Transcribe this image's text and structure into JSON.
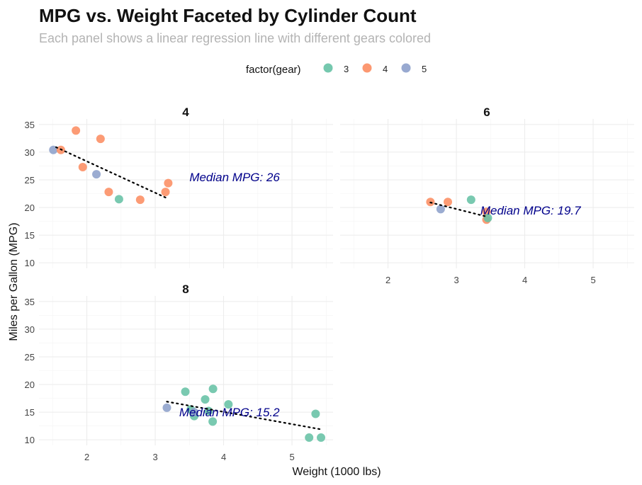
{
  "chart_data": {
    "type": "scatter",
    "title": "MPG vs. Weight Faceted by Cylinder Count",
    "subtitle": "Each panel shows a linear regression line with different gears colored",
    "xlabel": "Weight (1000 lbs)",
    "ylabel": "Miles per Gallon (MPG)",
    "xlim": [
      1.3,
      5.6
    ],
    "ylim": [
      9,
      36
    ],
    "x_ticks": [
      "2",
      "3",
      "4",
      "5"
    ],
    "y_ticks": [
      "10",
      "15",
      "20",
      "25",
      "30",
      "35"
    ],
    "grid": true,
    "legend": {
      "title": "factor(gear)",
      "position": "top",
      "entries": [
        {
          "label": "3",
          "color": "#66c2a5"
        },
        {
          "label": "4",
          "color": "#fc8d62"
        },
        {
          "label": "5",
          "color": "#8da0cb"
        }
      ]
    },
    "panels": [
      {
        "label": "4",
        "annotation": "Median MPG: 26",
        "annotation_pos": [
          3.5,
          25.5
        ],
        "regression": {
          "x": [
            1.55,
            3.15
          ],
          "y": [
            30.9,
            21.8
          ]
        },
        "points": [
          {
            "x": 1.51,
            "y": 30.4,
            "gear": "5"
          },
          {
            "x": 1.62,
            "y": 30.4,
            "gear": "4"
          },
          {
            "x": 1.84,
            "y": 33.9,
            "gear": "4"
          },
          {
            "x": 1.94,
            "y": 27.3,
            "gear": "4"
          },
          {
            "x": 2.14,
            "y": 26.0,
            "gear": "5"
          },
          {
            "x": 2.2,
            "y": 32.4,
            "gear": "4"
          },
          {
            "x": 2.32,
            "y": 22.8,
            "gear": "4"
          },
          {
            "x": 2.47,
            "y": 21.5,
            "gear": "3"
          },
          {
            "x": 2.78,
            "y": 21.4,
            "gear": "4"
          },
          {
            "x": 3.15,
            "y": 22.8,
            "gear": "4"
          },
          {
            "x": 3.19,
            "y": 24.4,
            "gear": "4"
          }
        ]
      },
      {
        "label": "6",
        "annotation": "Median MPG: 19.7",
        "annotation_pos": [
          3.35,
          19.5
        ],
        "regression": {
          "x": [
            2.62,
            3.46
          ],
          "y": [
            20.9,
            18.3
          ]
        },
        "points": [
          {
            "x": 2.62,
            "y": 21.0,
            "gear": "4"
          },
          {
            "x": 2.77,
            "y": 19.7,
            "gear": "5"
          },
          {
            "x": 2.875,
            "y": 21.0,
            "gear": "4"
          },
          {
            "x": 3.215,
            "y": 21.4,
            "gear": "3"
          },
          {
            "x": 3.44,
            "y": 19.2,
            "gear": "4"
          },
          {
            "x": 3.44,
            "y": 17.8,
            "gear": "4"
          },
          {
            "x": 3.46,
            "y": 18.1,
            "gear": "3"
          }
        ]
      },
      {
        "label": "8",
        "annotation": "Median MPG: 15.2",
        "annotation_pos": [
          3.35,
          15.0
        ],
        "regression": {
          "x": [
            3.17,
            5.42
          ],
          "y": [
            16.9,
            11.9
          ]
        },
        "points": [
          {
            "x": 3.17,
            "y": 15.8,
            "gear": "5"
          },
          {
            "x": 3.44,
            "y": 18.7,
            "gear": "3"
          },
          {
            "x": 3.52,
            "y": 15.5,
            "gear": "3"
          },
          {
            "x": 3.57,
            "y": 14.3,
            "gear": "3"
          },
          {
            "x": 3.57,
            "y": 15.0,
            "gear": "5"
          },
          {
            "x": 3.73,
            "y": 17.3,
            "gear": "3"
          },
          {
            "x": 3.78,
            "y": 15.2,
            "gear": "3"
          },
          {
            "x": 3.84,
            "y": 13.3,
            "gear": "3"
          },
          {
            "x": 3.845,
            "y": 19.2,
            "gear": "3"
          },
          {
            "x": 4.07,
            "y": 16.4,
            "gear": "3"
          },
          {
            "x": 5.25,
            "y": 10.4,
            "gear": "3"
          },
          {
            "x": 5.345,
            "y": 14.7,
            "gear": "3"
          },
          {
            "x": 5.424,
            "y": 10.4,
            "gear": "3"
          }
        ]
      }
    ]
  }
}
